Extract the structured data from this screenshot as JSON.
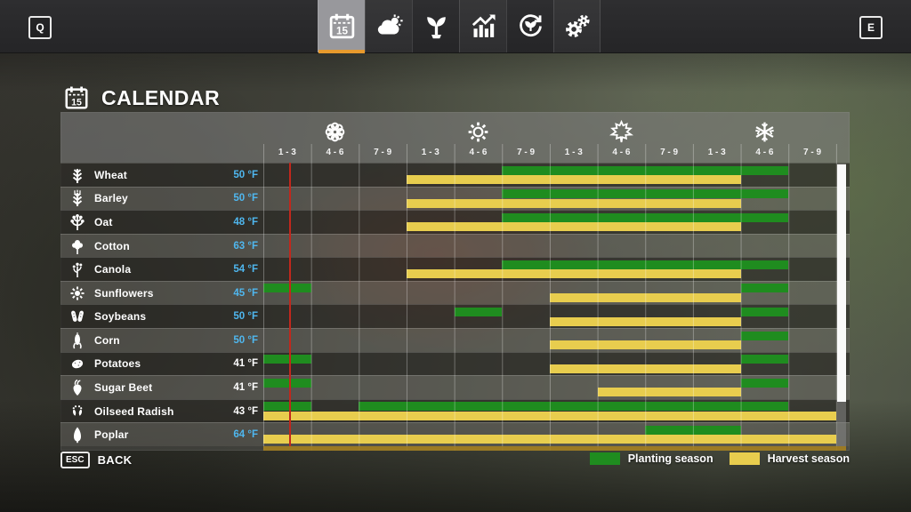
{
  "topbar": {
    "left_key": "Q",
    "right_key": "E",
    "tabs": [
      {
        "name": "calendar",
        "icon": "calendar-icon",
        "active": true
      },
      {
        "name": "weather",
        "icon": "weather-icon",
        "active": false
      },
      {
        "name": "crops",
        "icon": "seedling-icon",
        "active": false
      },
      {
        "name": "statistics",
        "icon": "chart-icon",
        "active": false
      },
      {
        "name": "crop-rotation",
        "icon": "rotation-icon",
        "active": false
      },
      {
        "name": "settings",
        "icon": "gears-icon",
        "active": false
      }
    ]
  },
  "page": {
    "title": "CALENDAR",
    "title_icon": "calendar-icon"
  },
  "calendar": {
    "seasons": [
      {
        "name": "spring",
        "icon": "flower-icon"
      },
      {
        "name": "summer",
        "icon": "sun-icon"
      },
      {
        "name": "autumn",
        "icon": "maple-leaf-icon"
      },
      {
        "name": "winter",
        "icon": "snowflake-icon"
      }
    ],
    "period_labels": [
      "1 - 3",
      "4 - 6",
      "7 - 9"
    ],
    "columns_total": 12,
    "crops": [
      {
        "name": "Wheat",
        "temp": "50 °F",
        "temp_style": "blue",
        "icon": "wheat-crop-icon",
        "planting": [
          [
            6,
            11
          ]
        ],
        "harvest": [
          [
            4,
            10
          ]
        ]
      },
      {
        "name": "Barley",
        "temp": "50 °F",
        "temp_style": "blue",
        "icon": "barley-crop-icon",
        "planting": [
          [
            6,
            11
          ]
        ],
        "harvest": [
          [
            4,
            10
          ]
        ]
      },
      {
        "name": "Oat",
        "temp": "48 °F",
        "temp_style": "blue",
        "icon": "oat-crop-icon",
        "planting": [
          [
            6,
            11
          ]
        ],
        "harvest": [
          [
            4,
            10
          ]
        ]
      },
      {
        "name": "Cotton",
        "temp": "63 °F",
        "temp_style": "blue",
        "icon": "cotton-crop-icon",
        "planting": [],
        "harvest": []
      },
      {
        "name": "Canola",
        "temp": "54 °F",
        "temp_style": "blue",
        "icon": "canola-crop-icon",
        "planting": [
          [
            6,
            11
          ]
        ],
        "harvest": [
          [
            4,
            10
          ]
        ]
      },
      {
        "name": "Sunflowers",
        "temp": "45 °F",
        "temp_style": "blue",
        "icon": "sunflower-crop-icon",
        "planting": [
          [
            1,
            1
          ],
          [
            11,
            11
          ]
        ],
        "harvest": [
          [
            7,
            10
          ]
        ]
      },
      {
        "name": "Soybeans",
        "temp": "50 °F",
        "temp_style": "blue",
        "icon": "soybean-crop-icon",
        "planting": [
          [
            5,
            5
          ],
          [
            11,
            11
          ]
        ],
        "harvest": [
          [
            7,
            10
          ]
        ]
      },
      {
        "name": "Corn",
        "temp": "50 °F",
        "temp_style": "blue",
        "icon": "corn-crop-icon",
        "planting": [
          [
            11,
            11
          ]
        ],
        "harvest": [
          [
            7,
            10
          ]
        ]
      },
      {
        "name": "Potatoes",
        "temp": "41 °F",
        "temp_style": "white",
        "icon": "potato-crop-icon",
        "planting": [
          [
            1,
            1
          ],
          [
            11,
            11
          ]
        ],
        "harvest": [
          [
            7,
            10
          ]
        ]
      },
      {
        "name": "Sugar Beet",
        "temp": "41 °F",
        "temp_style": "white",
        "icon": "sugar-beet-crop-icon",
        "planting": [
          [
            1,
            1
          ],
          [
            11,
            11
          ]
        ],
        "harvest": [
          [
            8,
            10
          ]
        ]
      },
      {
        "name": "Oilseed Radish",
        "temp": "43 °F",
        "temp_style": "white",
        "icon": "oilseed-radish-crop-icon",
        "planting": [
          [
            1,
            1
          ],
          [
            3,
            11
          ]
        ],
        "harvest": [
          [
            1,
            12
          ]
        ]
      },
      {
        "name": "Poplar",
        "temp": "64 °F",
        "temp_style": "blue",
        "icon": "poplar-crop-icon",
        "planting": [
          [
            9,
            10
          ]
        ],
        "harvest": [
          [
            1,
            12
          ]
        ]
      }
    ],
    "current_day_line": {
      "column": 1,
      "color": "#c2271c"
    },
    "legend": [
      {
        "name": "planting",
        "label": "Planting season",
        "color": "#1f8c1f"
      },
      {
        "name": "harvest",
        "label": "Harvest season",
        "color": "#e8cd4e"
      }
    ],
    "colors": {
      "planting": "#1f8c1f",
      "harvest": "#e8cd4e",
      "temp_blue": "#4fb7ef",
      "temp_white": "#ffffff"
    }
  },
  "footer": {
    "key": "ESC",
    "label": "BACK"
  }
}
